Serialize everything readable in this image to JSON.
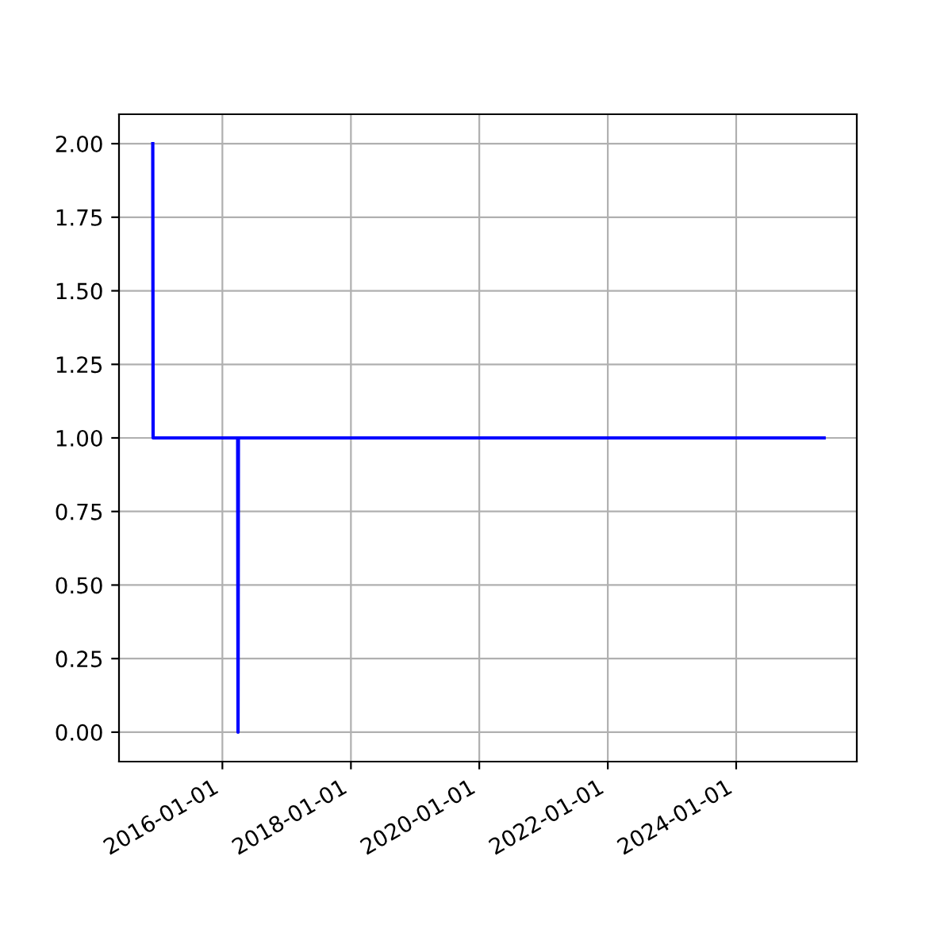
{
  "chart_data": {
    "type": "line",
    "x": [
      "2014-12-01",
      "2014-12-03",
      "2016-03-28",
      "2016-03-30",
      "2016-04-01",
      "2025-05-15"
    ],
    "series": [
      {
        "color": "#0000ff",
        "values": [
          2,
          1,
          1,
          0,
          1,
          1
        ]
      }
    ],
    "xlim": [
      "2014-05-23",
      "2025-11-17"
    ],
    "xticks": [
      "2016-01-01",
      "2018-01-01",
      "2020-01-01",
      "2022-01-01",
      "2024-01-01"
    ],
    "ylim": [
      -0.1,
      2.1
    ],
    "yticks": [
      {
        "value": 0,
        "label": "0.00"
      },
      {
        "value": 0.25,
        "label": "0.25"
      },
      {
        "value": 0.5,
        "label": "0.50"
      },
      {
        "value": 0.75,
        "label": "0.75"
      },
      {
        "value": 1,
        "label": "1.00"
      },
      {
        "value": 1.25,
        "label": "1.25"
      },
      {
        "value": 1.5,
        "label": "1.50"
      },
      {
        "value": 1.75,
        "label": "1.75"
      },
      {
        "value": 2,
        "label": "2.00"
      }
    ],
    "grid": true
  }
}
